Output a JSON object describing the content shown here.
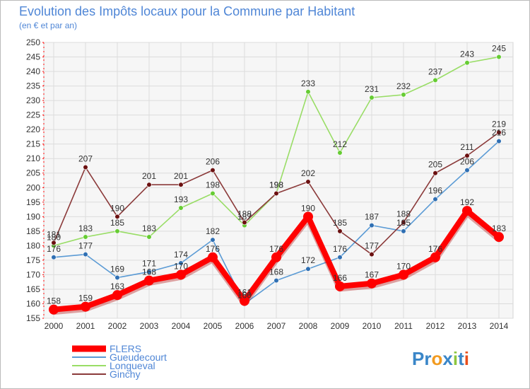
{
  "chart_data": {
    "type": "line",
    "title": "Evolution des Impôts locaux pour la Commune par Habitant",
    "subtitle": "(en € et par an)",
    "xlabel": "",
    "ylabel": "",
    "x": [
      "2000",
      "2001",
      "2002",
      "2003",
      "2004",
      "2005",
      "2006",
      "2007",
      "2008",
      "2009",
      "2010",
      "2011",
      "2012",
      "2013",
      "2014"
    ],
    "ylim": [
      155,
      250
    ],
    "yticks": [
      155,
      160,
      165,
      170,
      175,
      180,
      185,
      190,
      195,
      200,
      205,
      210,
      215,
      220,
      225,
      230,
      235,
      240,
      245,
      250
    ],
    "grid": true,
    "legend_position": "bottom-left",
    "series": [
      {
        "name": "FLERS",
        "color": "#ff0000",
        "point_color": "#ff0000",
        "thick": true,
        "values": [
          158,
          159,
          163,
          168,
          170,
          176,
          161,
          176,
          190,
          166,
          167,
          170,
          176,
          192,
          183
        ]
      },
      {
        "name": "Gueudecourt",
        "color": "#5b9bd5",
        "point_color": "#2f6fb3",
        "thick": false,
        "values": [
          176,
          177,
          169,
          171,
          174,
          182,
          160,
          168,
          172,
          176,
          187,
          185,
          196,
          206,
          216
        ]
      },
      {
        "name": "Longueval",
        "color": "#99dd66",
        "point_color": "#66cc33",
        "thick": false,
        "values": [
          180,
          183,
          185,
          183,
          193,
          198,
          187,
          198,
          233,
          212,
          231,
          232,
          237,
          243,
          245
        ]
      },
      {
        "name": "Ginchy",
        "color": "#8b3a3a",
        "point_color": "#6b1010",
        "thick": false,
        "values": [
          181,
          207,
          190,
          201,
          201,
          206,
          188,
          198,
          202,
          185,
          177,
          188,
          205,
          211,
          219
        ]
      }
    ]
  },
  "logo": {
    "text": "Proxiti"
  }
}
